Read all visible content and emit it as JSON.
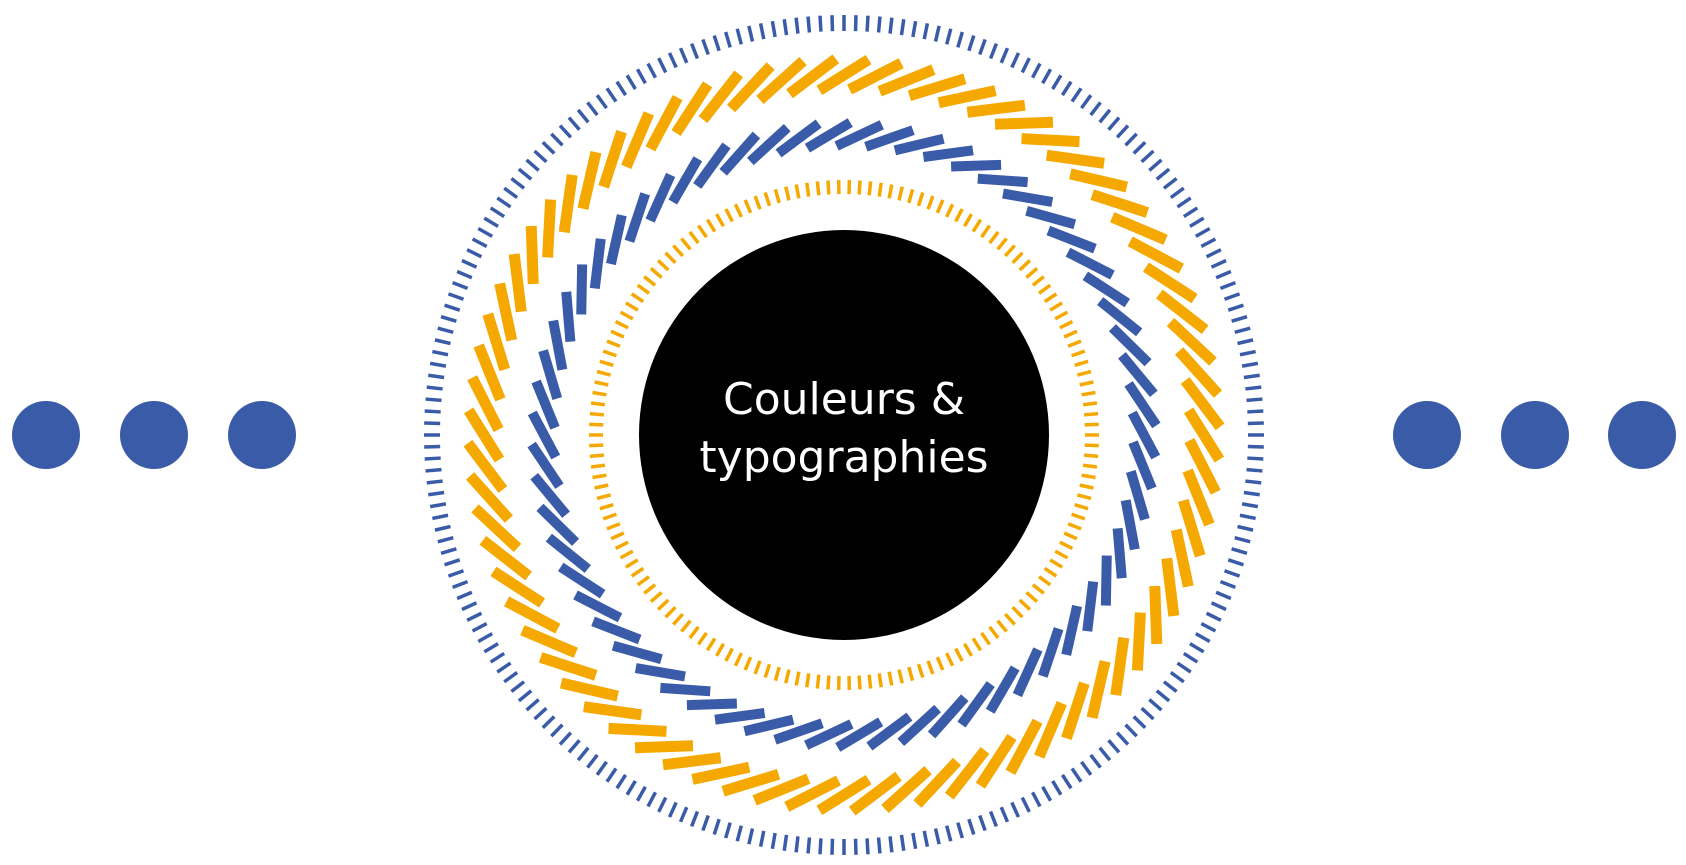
{
  "center": {
    "lines": [
      "Couleurs &",
      "typographies"
    ]
  }
}
